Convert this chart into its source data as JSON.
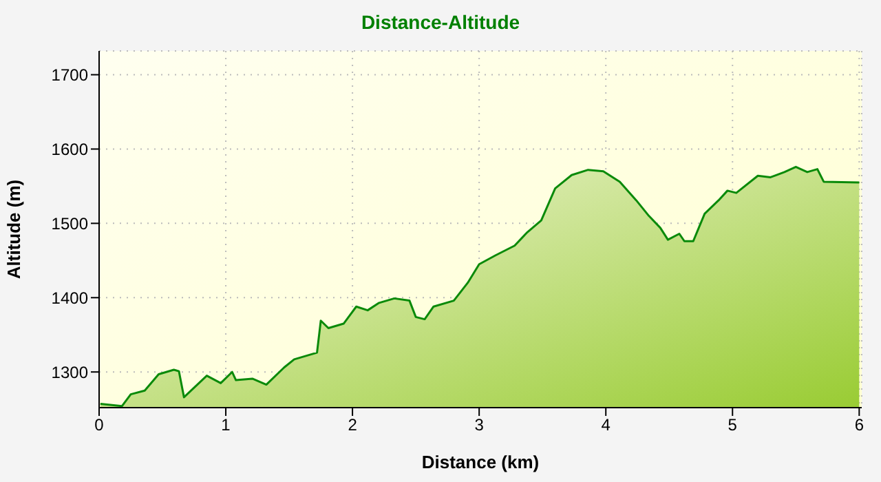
{
  "chart_data": {
    "type": "area",
    "title": "Distance-Altitude",
    "xlabel": "Distance (km)",
    "ylabel": "Altitude (m)",
    "x": [
      0.01,
      0.18,
      0.25,
      0.36,
      0.47,
      0.59,
      0.63,
      0.67,
      0.85,
      0.96,
      1.05,
      1.08,
      1.21,
      1.32,
      1.46,
      1.54,
      1.72,
      1.75,
      1.81,
      1.93,
      2.03,
      2.12,
      2.21,
      2.33,
      2.45,
      2.5,
      2.57,
      2.64,
      2.8,
      2.91,
      3.0,
      3.13,
      3.28,
      3.38,
      3.49,
      3.6,
      3.73,
      3.86,
      3.98,
      4.11,
      4.24,
      4.34,
      4.43,
      4.49,
      4.58,
      4.62,
      4.69,
      4.78,
      4.89,
      4.96,
      5.03,
      5.2,
      5.3,
      5.41,
      5.5,
      5.59,
      5.67,
      5.72,
      6.0
    ],
    "series": [
      {
        "color": "#0a8a0a",
        "values": [
          1257,
          1254,
          1270,
          1275,
          1297,
          1303,
          1301,
          1266,
          1295,
          1285,
          1300,
          1289,
          1291,
          1283,
          1306,
          1317,
          1326,
          1369,
          1359,
          1365,
          1388,
          1383,
          1393,
          1399,
          1396,
          1374,
          1371,
          1388,
          1396,
          1420,
          1445,
          1457,
          1470,
          1488,
          1504,
          1547,
          1565,
          1572,
          1570,
          1556,
          1531,
          1510,
          1494,
          1478,
          1486,
          1476,
          1476,
          1513,
          1531,
          1544,
          1541,
          1564,
          1562,
          1569,
          1576,
          1569,
          1573,
          1556,
          1555
        ]
      }
    ],
    "xlim": [
      0,
      6.02
    ],
    "ylim": [
      1252,
      1732
    ],
    "xticks": [
      0,
      1,
      2,
      3,
      4,
      5,
      6
    ],
    "yticks": [
      1300,
      1400,
      1500,
      1600,
      1700
    ],
    "grid": true,
    "line_style": "solid",
    "marker": "none"
  }
}
